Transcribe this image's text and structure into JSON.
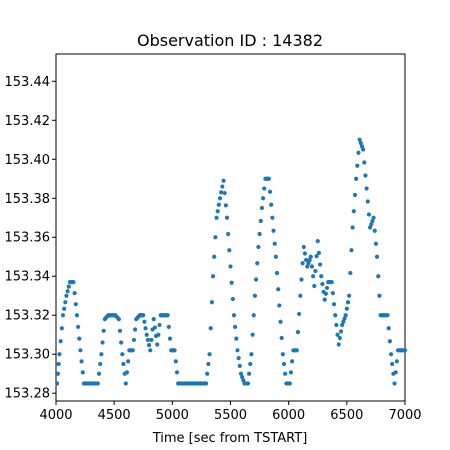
{
  "chart_data": {
    "type": "scatter",
    "title": "Observation ID : 14382",
    "xlabel": "Time [sec from TSTART]",
    "ylabel": "",
    "xlim": [
      4000,
      7000
    ],
    "ylim": [
      153.276,
      153.454
    ],
    "xticks": [
      4000,
      4500,
      5000,
      5500,
      6000,
      6500,
      7000
    ],
    "yticks": [
      153.28,
      153.3,
      153.32,
      153.34,
      153.36,
      153.38,
      153.4,
      153.42,
      153.44
    ],
    "xtick_labels": [
      "4000",
      "4500",
      "5000",
      "5500",
      "6000",
      "6500",
      "7000"
    ],
    "ytick_labels": [
      "153.28",
      "153.30",
      "153.32",
      "153.34",
      "153.36",
      "153.38",
      "153.40",
      "153.42",
      "153.44"
    ],
    "grid": false,
    "marker_color": "#1f77b4",
    "series": [
      {
        "x": [
          4010,
          4030,
          4060,
          4090,
          4120,
          4150,
          4180,
          4210,
          4240,
          4270,
          4300,
          4330,
          4360,
          4390,
          4420,
          4450,
          4480,
          4510,
          4540,
          4570,
          4600,
          4630,
          4660,
          4690,
          4720,
          4750,
          4780,
          4810,
          4840,
          4870,
          4900,
          4930,
          4960,
          4990,
          5020,
          5050,
          5080,
          5110,
          5140,
          5170,
          5200,
          5230,
          5260,
          5290,
          5320,
          5350,
          5380,
          5410,
          5440,
          5470,
          5500,
          5530,
          5560,
          5590,
          5620,
          5650,
          5680,
          5710,
          5740,
          5770,
          5800,
          5830,
          5860,
          5890,
          5920,
          5950,
          5980,
          6010,
          6040,
          6070,
          6100,
          6130,
          6160,
          6190,
          6220,
          6250,
          6280,
          6310,
          6340,
          6370,
          6400,
          6430,
          6460,
          6490,
          6520,
          6550,
          6580,
          6610,
          6640,
          6670,
          6700,
          6730,
          6760,
          6790,
          6820,
          6850,
          6880,
          6910,
          6940,
          6970,
          7000
        ],
        "y": [
          153.285,
          153.3,
          153.32,
          153.33,
          153.337,
          153.337,
          153.32,
          153.302,
          153.285,
          153.285,
          153.285,
          153.285,
          153.285,
          153.3,
          153.318,
          153.32,
          153.32,
          153.32,
          153.318,
          153.3,
          153.285,
          153.302,
          153.302,
          153.318,
          153.32,
          153.32,
          153.31,
          153.302,
          153.318,
          153.305,
          153.32,
          153.32,
          153.32,
          153.302,
          153.302,
          153.285,
          153.285,
          153.285,
          153.285,
          153.285,
          153.285,
          153.285,
          153.285,
          153.285,
          153.3,
          153.34,
          153.37,
          153.38,
          153.389,
          153.37,
          153.345,
          153.32,
          153.302,
          153.29,
          153.285,
          153.285,
          153.3,
          153.33,
          153.355,
          153.375,
          153.39,
          153.39,
          153.37,
          153.35,
          153.325,
          153.3,
          153.285,
          153.285,
          153.302,
          153.302,
          153.33,
          153.355,
          153.345,
          153.35,
          153.335,
          153.358,
          153.34,
          153.328,
          153.337,
          153.337,
          153.32,
          153.305,
          153.315,
          153.32,
          153.33,
          153.365,
          153.39,
          153.41,
          153.405,
          153.385,
          153.365,
          153.37,
          153.35,
          153.32,
          153.32,
          153.32,
          153.3,
          153.285,
          153.302,
          153.302,
          153.302
        ]
      }
    ]
  }
}
